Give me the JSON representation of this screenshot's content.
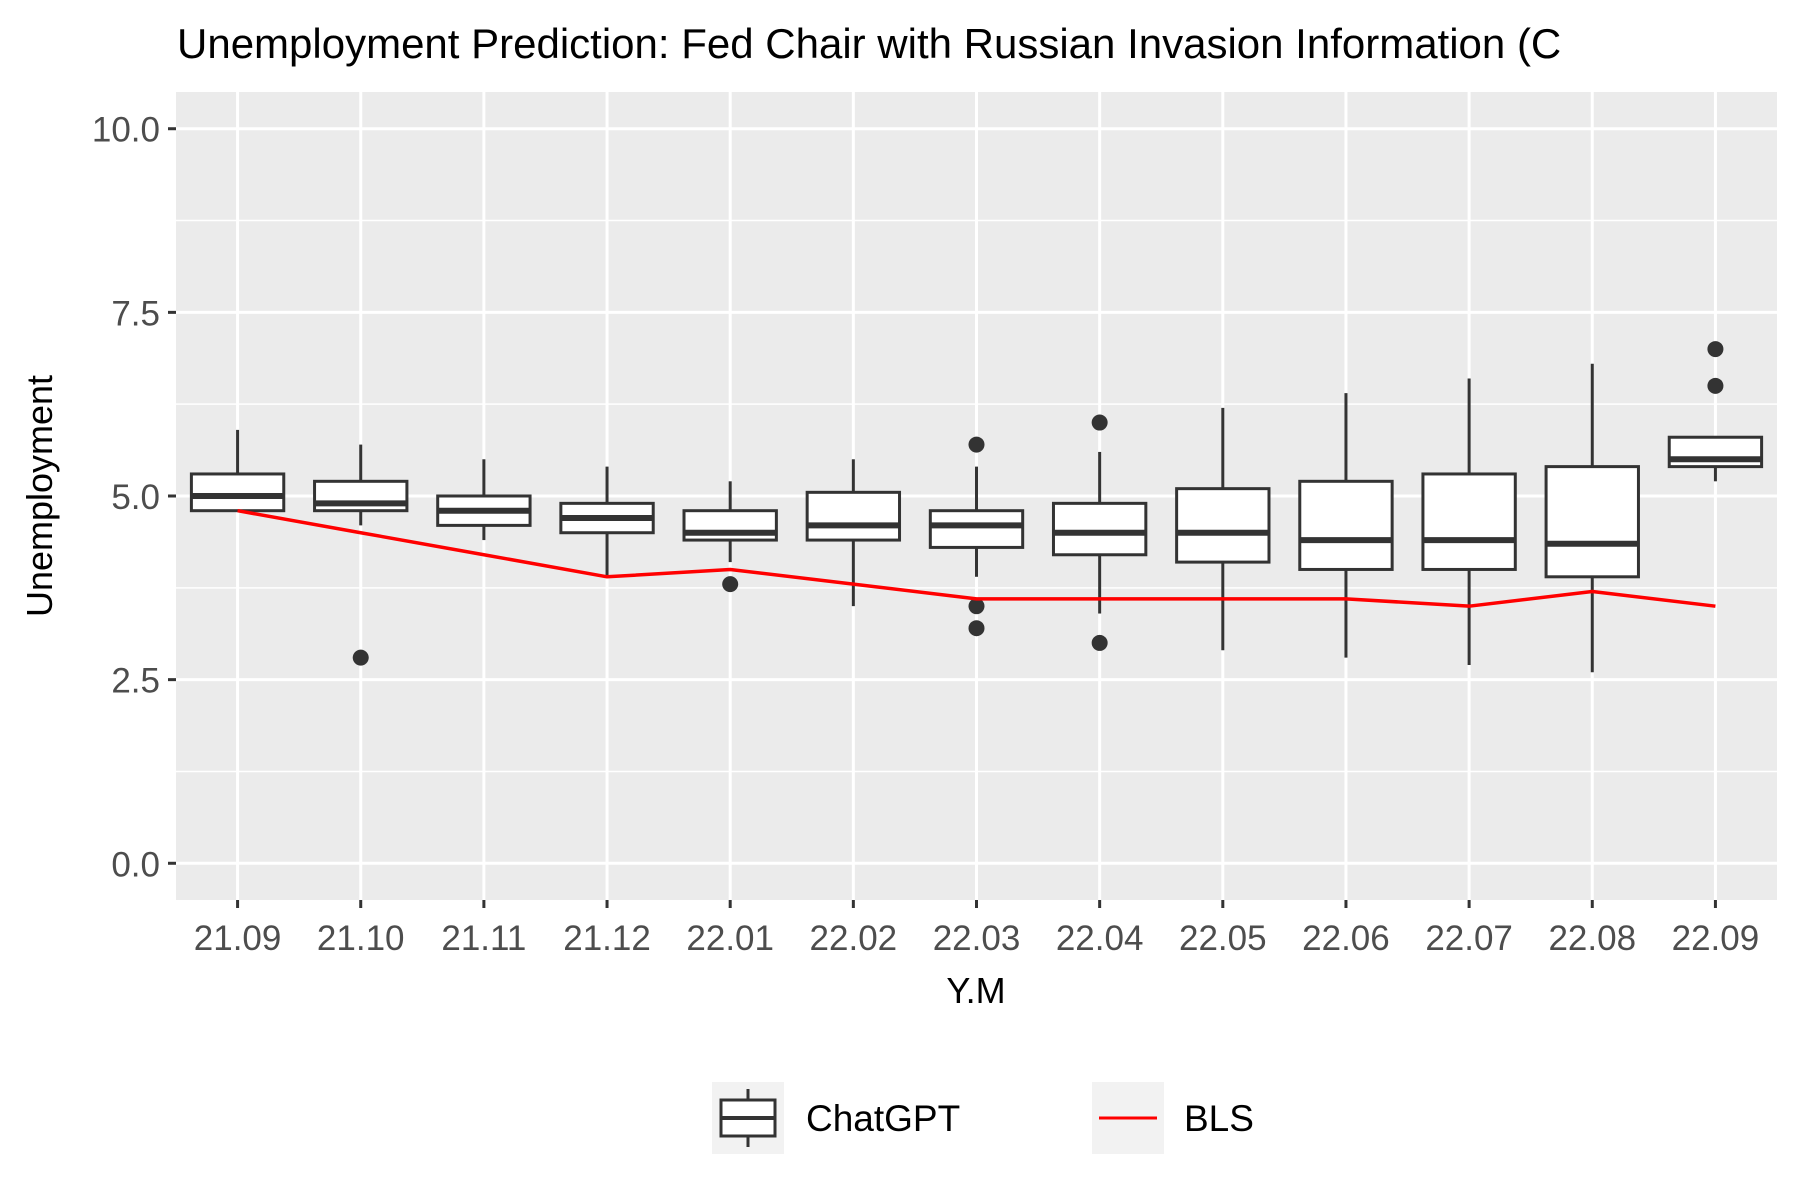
{
  "chart_data": {
    "type": "boxplot",
    "title": "Unemployment Prediction: Fed Chair with Russian Invasion Information (C",
    "xlabel": "Y.M",
    "ylabel": "Unemployment",
    "ylim": [
      -0.5,
      10.5
    ],
    "yticks": [
      0.0,
      2.5,
      5.0,
      7.5,
      10.0
    ],
    "ytick_labels": [
      "0.0",
      "2.5",
      "5.0",
      "7.5",
      "10.0"
    ],
    "categories": [
      "21.09",
      "21.10",
      "21.11",
      "21.12",
      "22.01",
      "22.02",
      "22.03",
      "22.04",
      "22.05",
      "22.06",
      "22.07",
      "22.08",
      "22.09"
    ],
    "series": [
      {
        "name": "ChatGPT",
        "kind": "box",
        "boxes": [
          {
            "min": 4.8,
            "q1": 4.8,
            "median": 5.0,
            "q3": 5.3,
            "max": 5.9,
            "outliers": []
          },
          {
            "min": 4.6,
            "q1": 4.8,
            "median": 4.9,
            "q3": 5.2,
            "max": 5.7,
            "outliers": [
              2.8
            ]
          },
          {
            "min": 4.4,
            "q1": 4.6,
            "median": 4.8,
            "q3": 5.0,
            "max": 5.5,
            "outliers": []
          },
          {
            "min": 3.9,
            "q1": 4.5,
            "median": 4.7,
            "q3": 4.9,
            "max": 5.4,
            "outliers": []
          },
          {
            "min": 4.1,
            "q1": 4.4,
            "median": 4.5,
            "q3": 4.8,
            "max": 5.2,
            "outliers": [
              3.8
            ]
          },
          {
            "min": 3.5,
            "q1": 4.4,
            "median": 4.6,
            "q3": 5.05,
            "max": 5.5,
            "outliers": []
          },
          {
            "min": 3.9,
            "q1": 4.3,
            "median": 4.6,
            "q3": 4.8,
            "max": 5.4,
            "outliers": [
              5.7,
              3.5,
              3.2
            ]
          },
          {
            "min": 3.4,
            "q1": 4.2,
            "median": 4.5,
            "q3": 4.9,
            "max": 5.6,
            "outliers": [
              6.0,
              3.0
            ]
          },
          {
            "min": 2.9,
            "q1": 4.1,
            "median": 4.5,
            "q3": 5.1,
            "max": 6.2,
            "outliers": []
          },
          {
            "min": 2.8,
            "q1": 4.0,
            "median": 4.4,
            "q3": 5.2,
            "max": 6.4,
            "outliers": []
          },
          {
            "min": 2.7,
            "q1": 4.0,
            "median": 4.4,
            "q3": 5.3,
            "max": 6.6,
            "outliers": []
          },
          {
            "min": 2.6,
            "q1": 3.9,
            "median": 4.35,
            "q3": 5.4,
            "max": 6.8,
            "outliers": []
          },
          {
            "min": 5.2,
            "q1": 5.4,
            "median": 5.5,
            "q3": 5.8,
            "max": 5.8,
            "outliers": [
              7.0,
              6.5
            ]
          }
        ]
      },
      {
        "name": "BLS",
        "kind": "line",
        "color": "#ff0000",
        "values": [
          4.8,
          4.5,
          4.2,
          3.9,
          4.0,
          3.8,
          3.6,
          3.6,
          3.6,
          3.6,
          3.5,
          3.7,
          3.5
        ]
      }
    ],
    "legend": {
      "position": "bottom",
      "items": [
        "ChatGPT",
        "BLS"
      ]
    },
    "grid": true,
    "colors": {
      "panel": "#ebebeb",
      "grid": "#ffffff",
      "box_fill": "#ffffff",
      "box_stroke": "#333333",
      "outlier": "#333333",
      "tick_text": "#4d4d4d",
      "axis_title": "#000000"
    }
  }
}
